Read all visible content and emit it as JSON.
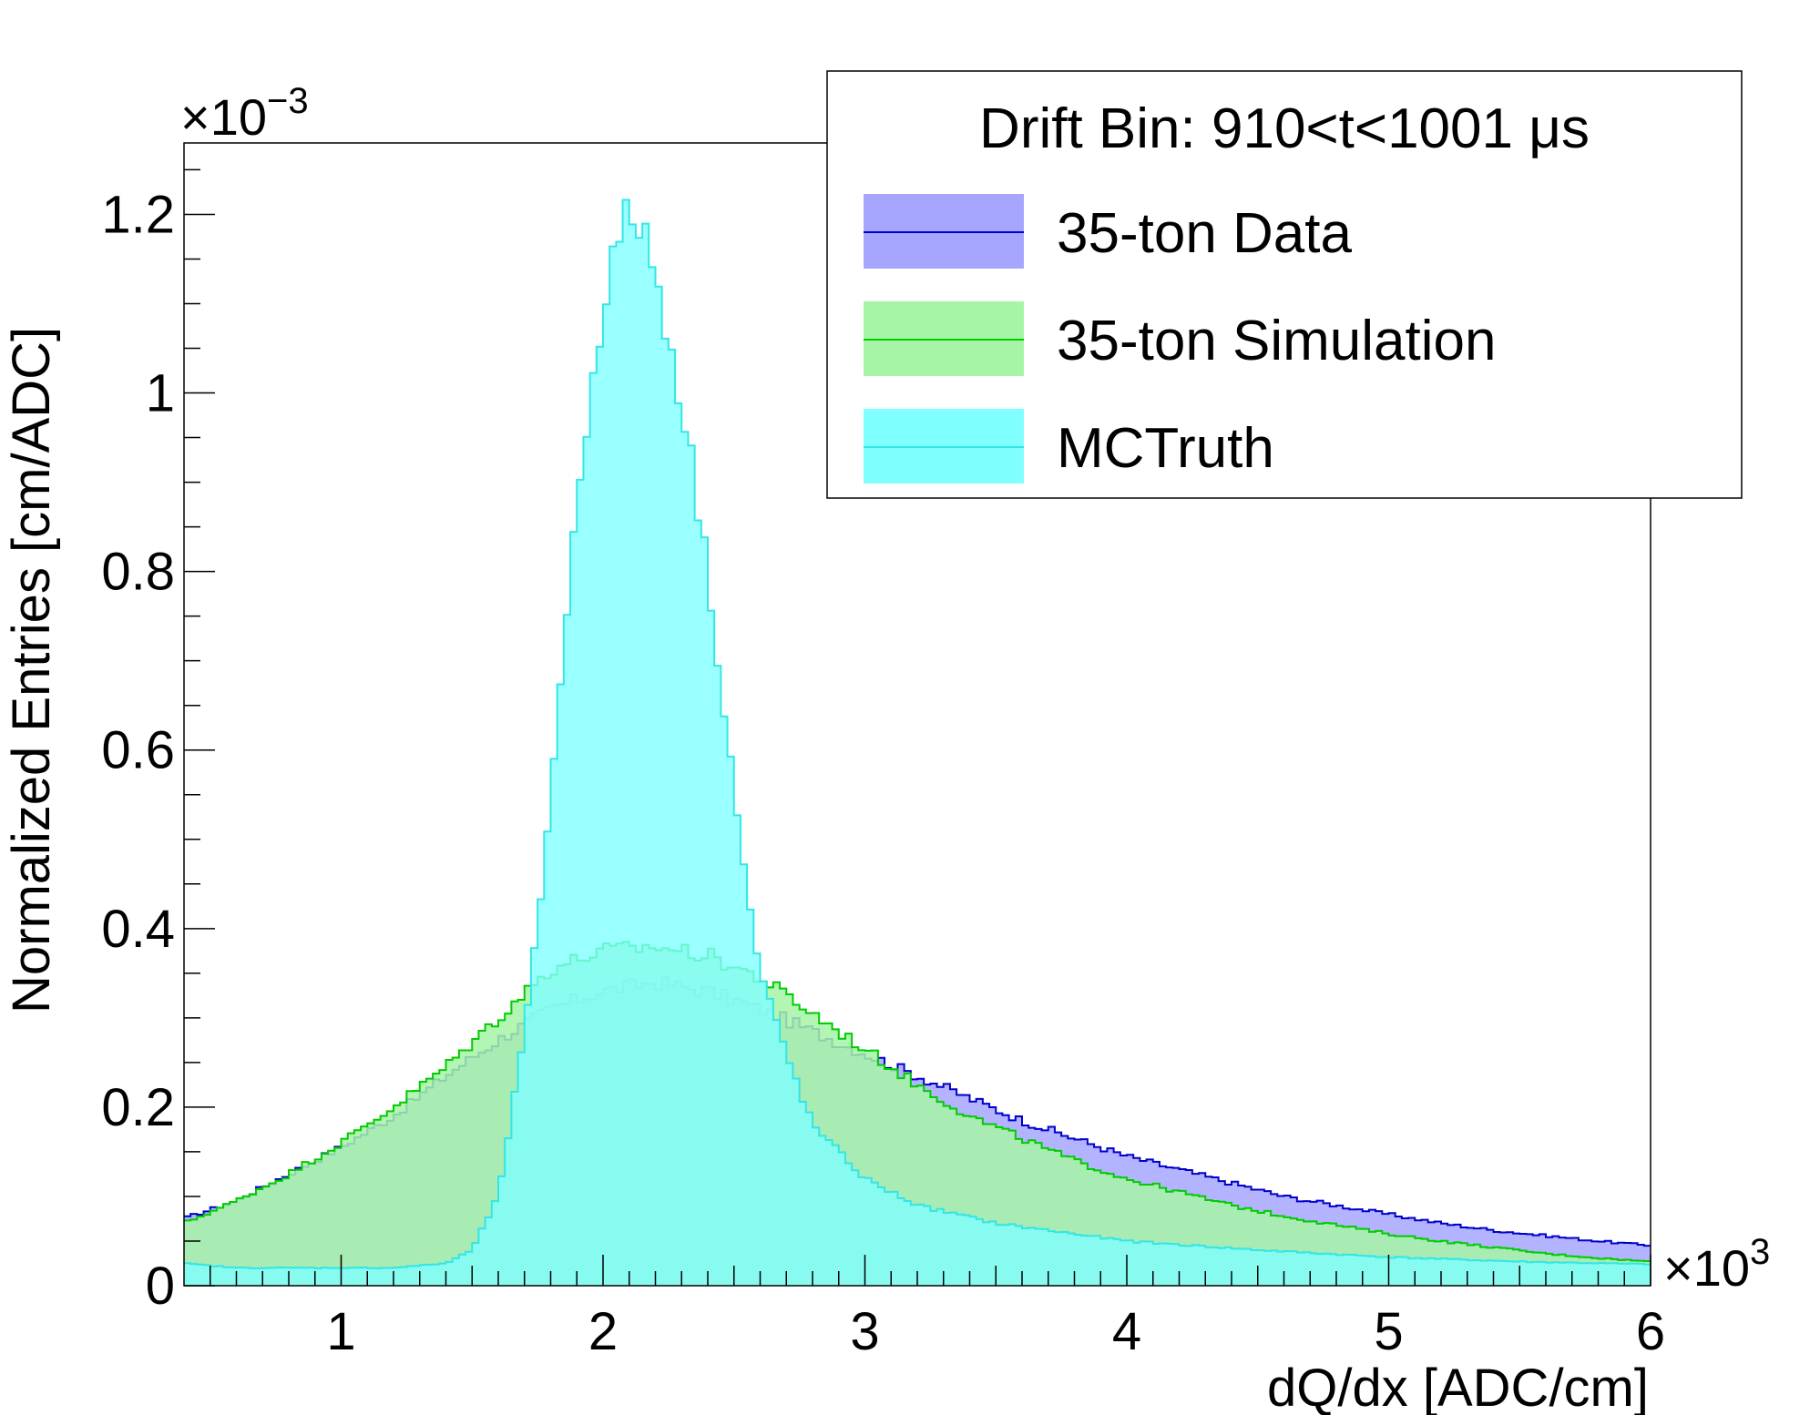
{
  "chart_data": {
    "type": "histogram",
    "xlabel": "dQ/dx [ADC/cm]",
    "ylabel": "Normalized Entries [cm/ADC]",
    "x_multiplier": "×10",
    "x_multiplier_exp": "3",
    "y_multiplier": "×10",
    "y_multiplier_exp": "−3",
    "xlim": [
      0.4,
      6.0
    ],
    "ylim": [
      0,
      1.28
    ],
    "x_ticks": [
      {
        "value": 1,
        "label": "1"
      },
      {
        "value": 2,
        "label": "2"
      },
      {
        "value": 3,
        "label": "3"
      },
      {
        "value": 4,
        "label": "4"
      },
      {
        "value": 5,
        "label": "5"
      },
      {
        "value": 6,
        "label": "6"
      }
    ],
    "y_ticks": [
      {
        "value": 0,
        "label": "0"
      },
      {
        "value": 0.2,
        "label": "0.2"
      },
      {
        "value": 0.4,
        "label": "0.4"
      },
      {
        "value": 0.6,
        "label": "0.6"
      },
      {
        "value": 0.8,
        "label": "0.8"
      },
      {
        "value": 1.0,
        "label": "1"
      },
      {
        "value": 1.2,
        "label": "1.2"
      }
    ],
    "legend": {
      "position": "top-right",
      "header": "Drift Bin: 910<t<1001 μs"
    },
    "grid": false,
    "series": [
      {
        "name": "35-ton Data",
        "fill": "#a6a6ff",
        "line": "#0000cc",
        "bin_width": 0.025,
        "x": [
          0.4,
          0.6,
          0.8,
          1.0,
          1.2,
          1.4,
          1.6,
          1.8,
          2.0,
          2.2,
          2.4,
          2.6,
          2.8,
          3.0,
          3.2,
          3.4,
          3.6,
          3.8,
          4.0,
          4.2,
          4.4,
          4.6,
          4.8,
          5.0,
          5.2,
          5.4,
          5.6,
          5.8,
          6.0
        ],
        "y": [
          0.075,
          0.095,
          0.125,
          0.155,
          0.19,
          0.235,
          0.275,
          0.31,
          0.33,
          0.34,
          0.33,
          0.31,
          0.285,
          0.26,
          0.235,
          0.21,
          0.185,
          0.165,
          0.145,
          0.13,
          0.115,
          0.1,
          0.09,
          0.08,
          0.07,
          0.062,
          0.056,
          0.05,
          0.045
        ]
      },
      {
        "name": "35-ton Simulation",
        "fill": "#a6f5a6",
        "line": "#00cc00",
        "bin_width": 0.025,
        "x": [
          0.4,
          0.6,
          0.8,
          1.0,
          1.2,
          1.4,
          1.6,
          1.8,
          2.0,
          2.2,
          2.4,
          2.6,
          2.8,
          3.0,
          3.2,
          3.4,
          3.6,
          3.8,
          4.0,
          4.2,
          4.4,
          4.6,
          4.8,
          5.0,
          5.2,
          5.4,
          5.6,
          5.8,
          6.0
        ],
        "y": [
          0.07,
          0.095,
          0.125,
          0.16,
          0.2,
          0.245,
          0.3,
          0.355,
          0.375,
          0.38,
          0.37,
          0.345,
          0.305,
          0.265,
          0.225,
          0.19,
          0.165,
          0.14,
          0.12,
          0.105,
          0.09,
          0.078,
          0.068,
          0.058,
          0.05,
          0.043,
          0.036,
          0.031,
          0.027
        ]
      },
      {
        "name": "MCTruth",
        "fill": "#80ffff",
        "line": "#33e6e6",
        "bin_width": 0.025,
        "x": [
          0.4,
          0.6,
          0.8,
          1.0,
          1.2,
          1.4,
          1.5,
          1.6,
          1.7,
          1.75,
          1.8,
          1.85,
          1.9,
          1.95,
          2.0,
          2.05,
          2.1,
          2.15,
          2.2,
          2.25,
          2.3,
          2.35,
          2.4,
          2.45,
          2.5,
          2.55,
          2.6,
          2.7,
          2.8,
          3.0,
          3.2,
          3.5,
          4.0,
          4.5,
          5.0,
          5.5,
          6.0
        ],
        "y": [
          0.025,
          0.02,
          0.02,
          0.02,
          0.02,
          0.025,
          0.04,
          0.1,
          0.28,
          0.4,
          0.55,
          0.72,
          0.87,
          1.0,
          1.1,
          1.16,
          1.2,
          1.19,
          1.13,
          1.07,
          0.99,
          0.9,
          0.8,
          0.68,
          0.56,
          0.44,
          0.35,
          0.26,
          0.18,
          0.12,
          0.09,
          0.07,
          0.05,
          0.04,
          0.032,
          0.027,
          0.024
        ]
      }
    ]
  }
}
